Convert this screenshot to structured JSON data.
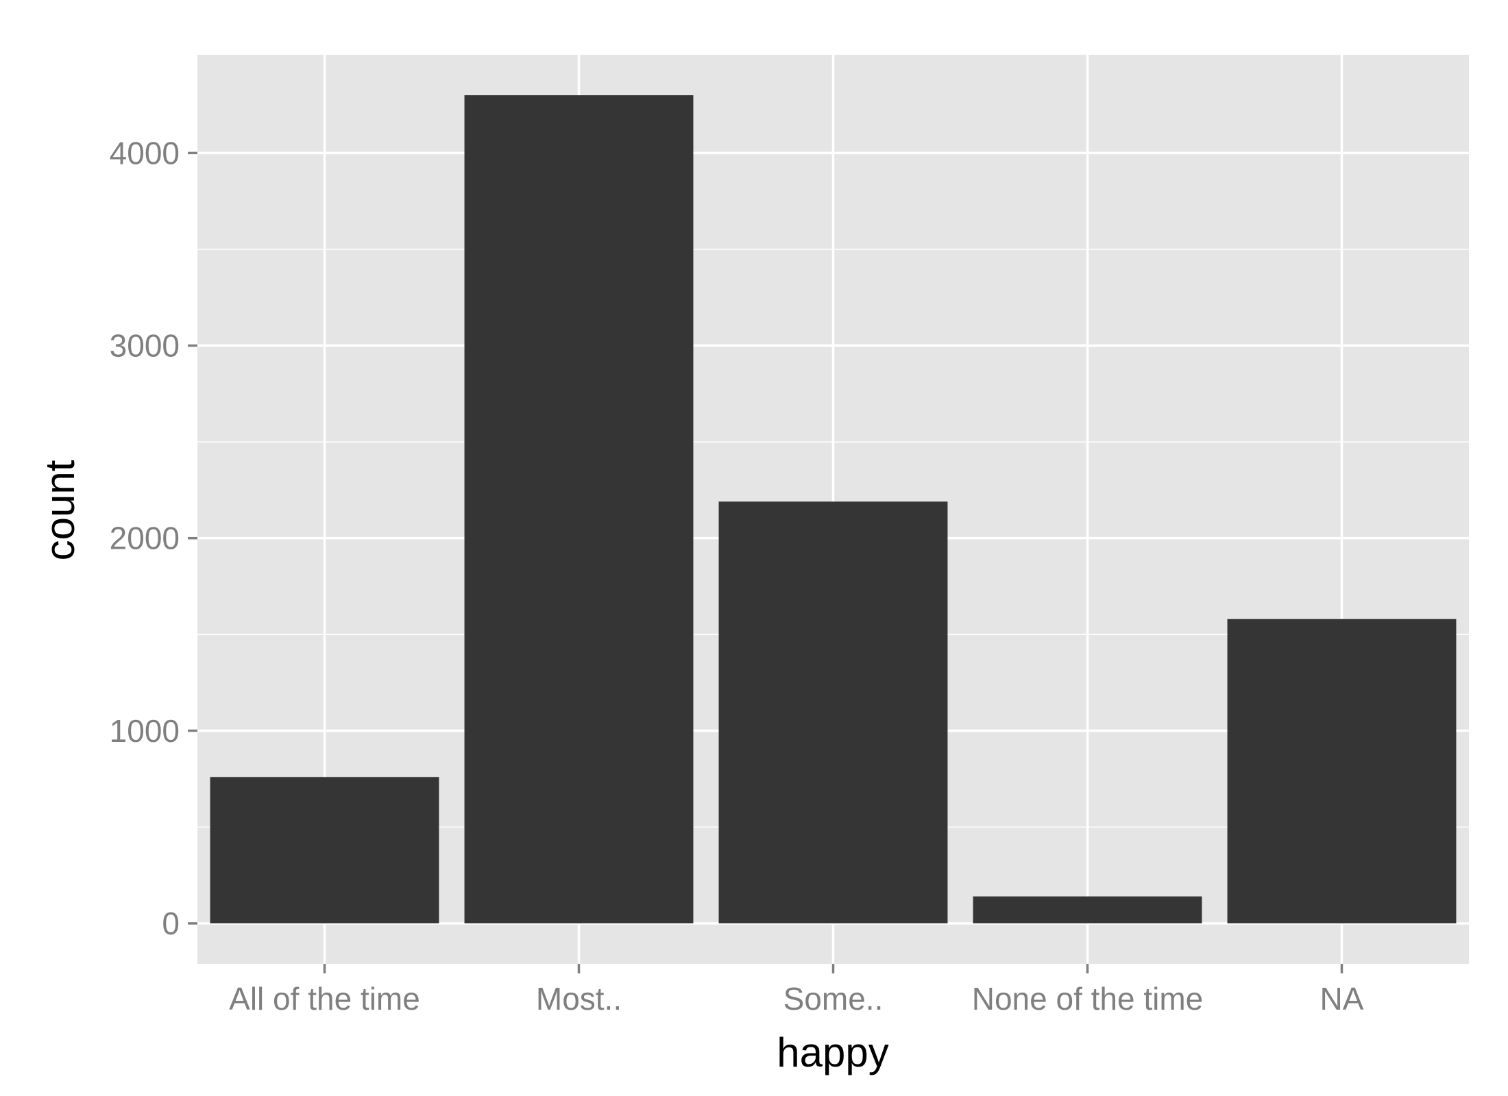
{
  "chart_data": {
    "type": "bar",
    "categories": [
      "All of the time",
      "Most..",
      "Some..",
      "None of the time",
      "NA"
    ],
    "values": [
      760,
      4300,
      2190,
      140,
      1580
    ],
    "title": "",
    "xlabel": "happy",
    "ylabel": "count",
    "ylim": [
      -210,
      4510
    ],
    "yticks": [
      0,
      1000,
      2000,
      3000,
      4000
    ],
    "yticks_minor": [
      500,
      1500,
      2500,
      3500
    ],
    "grid": true,
    "colors": {
      "panel_background": "#e5e5e5",
      "grid": "#ffffff",
      "bar_fill": "#353535",
      "tick_label": "#7f7f7f",
      "axis_title": "#000000"
    }
  }
}
